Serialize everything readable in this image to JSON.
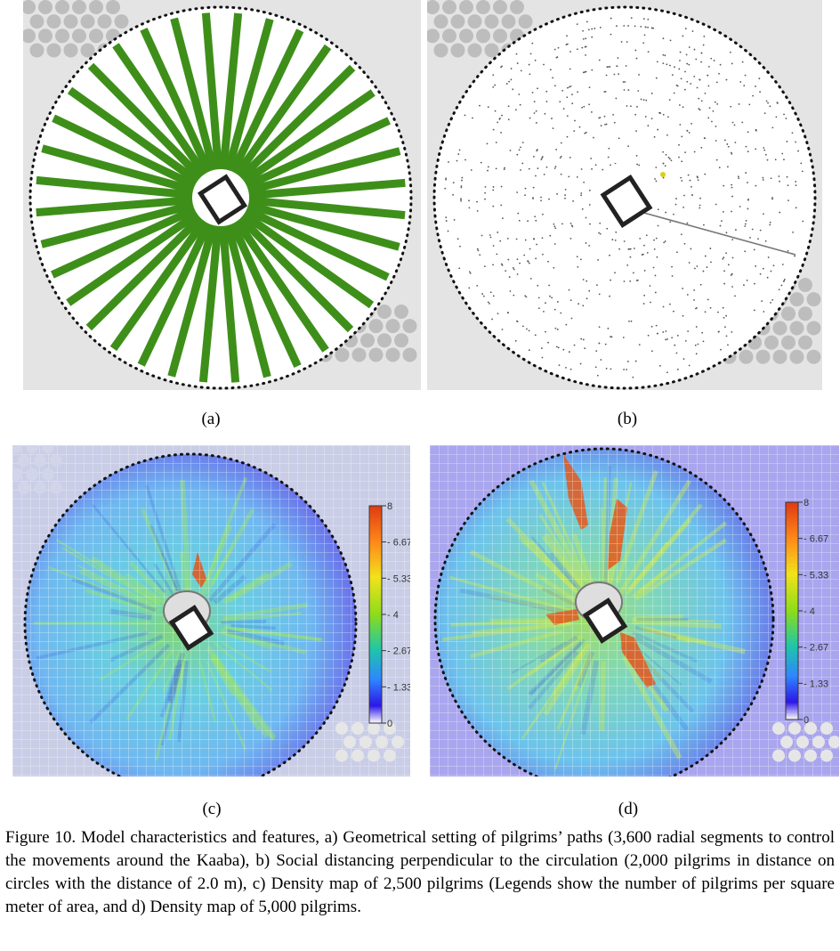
{
  "panels": {
    "a": {
      "label": "(a)"
    },
    "b": {
      "label": "(b)"
    },
    "c": {
      "label": "(c)",
      "legend": {
        "ticks": [
          "8",
          "6.67",
          "5.33",
          "4",
          "2.67",
          "1.33",
          "0"
        ],
        "colors": [
          "#e03a12",
          "#ff8a1a",
          "#f2e21a",
          "#8ddc1a",
          "#1ec7a8",
          "#2e86ff",
          "#2d16e8",
          "#ffffff"
        ]
      }
    },
    "d": {
      "label": "(d)",
      "legend": {
        "ticks": [
          "8",
          "6.67",
          "5.33",
          "4",
          "2.67",
          "1.33",
          "0"
        ],
        "colors": [
          "#e03a12",
          "#ff8a1a",
          "#f2e21a",
          "#8ddc1a",
          "#1ec7a8",
          "#2e86ff",
          "#2d16e8",
          "#ffffff"
        ]
      }
    }
  },
  "colors": {
    "path_green": "#3e8f1a",
    "background_gray": "#e4e4e4",
    "circle_gray": "#bdbdbd"
  },
  "caption": "Figure 10. Model characteristics and features, a) Geometrical setting of pilgrims’ paths (3,600 radial segments to control the movements around the Kaaba), b) Social distancing perpendicular to the circulation (2,000 pilgrims in distance on circles with the distance of 2.0 m), c) Density map of 2,500 pilgrims (Legends show the number of pilgrims per square meter of area, and d) Density map of 5,000 pilgrims."
}
